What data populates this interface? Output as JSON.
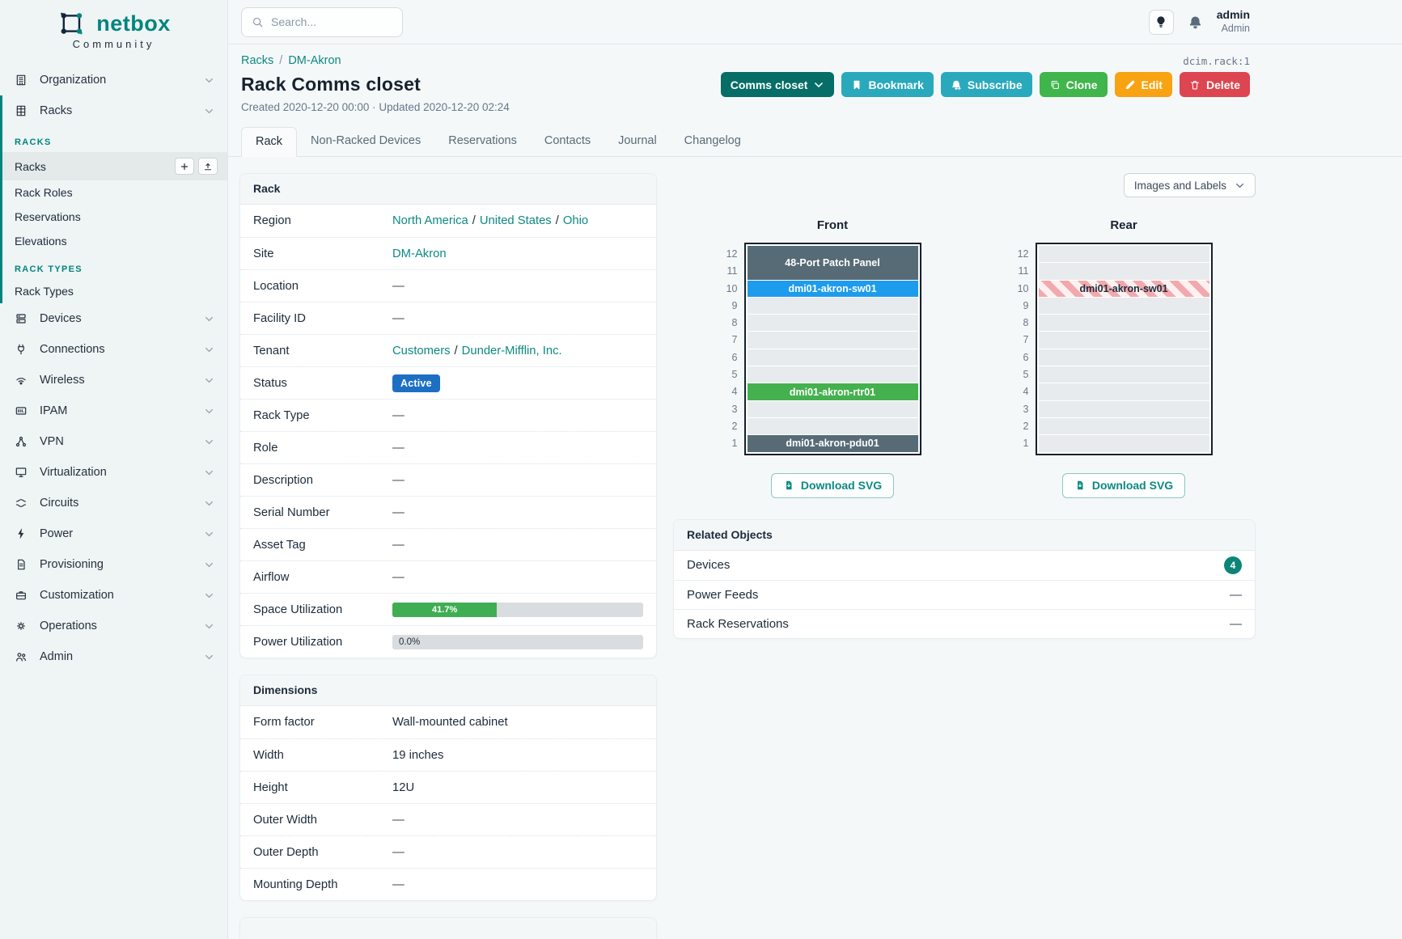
{
  "colors": {
    "teal_accent": "#00857e",
    "link_teal": "#0d8983",
    "group_button": "#066d67",
    "cyan_button": "#2aa9bc",
    "green_button": "#3fb54b",
    "orange_button": "#f8a311",
    "red_button": "#dd4550",
    "status_badge_blue": "#1d6fc4",
    "progress_green": "#3fae52",
    "devices_count_badge": "#0b8577"
  },
  "sidebar": {
    "logo": "netbox",
    "logo_sub": "Community",
    "parents_top": [
      {
        "label": "Organization",
        "icon": "organization-icon"
      },
      {
        "label": "Racks",
        "icon": "racks-icon",
        "expanded": true
      }
    ],
    "racks_sections": [
      {
        "title": "RACKS",
        "items": [
          {
            "label": "Racks",
            "active": true,
            "actions": [
              "plus-icon",
              "upload-icon"
            ]
          },
          {
            "label": "Rack Roles"
          },
          {
            "label": "Reservations"
          },
          {
            "label": "Elevations"
          }
        ]
      },
      {
        "title": "RACK TYPES",
        "items": [
          {
            "label": "Rack Types"
          }
        ]
      }
    ],
    "parents_bottom": [
      {
        "label": "Devices",
        "icon": "devices-icon"
      },
      {
        "label": "Connections",
        "icon": "connections-icon"
      },
      {
        "label": "Wireless",
        "icon": "wireless-icon"
      },
      {
        "label": "IPAM",
        "icon": "ipam-icon"
      },
      {
        "label": "VPN",
        "icon": "vpn-icon"
      },
      {
        "label": "Virtualization",
        "icon": "virtualization-icon"
      },
      {
        "label": "Circuits",
        "icon": "circuits-icon"
      },
      {
        "label": "Power",
        "icon": "power-icon"
      },
      {
        "label": "Provisioning",
        "icon": "provisioning-icon"
      },
      {
        "label": "Customization",
        "icon": "customization-icon"
      },
      {
        "label": "Operations",
        "icon": "operations-icon"
      },
      {
        "label": "Admin",
        "icon": "admin-icon"
      }
    ]
  },
  "topbar": {
    "search_placeholder": "Search...",
    "user_name": "admin",
    "user_role": "Admin"
  },
  "page": {
    "breadcrumb": [
      "Racks",
      "DM-Akron"
    ],
    "object_id": "dcim.rack:1",
    "title": "Rack Comms closet",
    "meta": "Created 2020-12-20 00:00 · Updated 2020-12-20 02:24",
    "actions": {
      "group": "Comms closet",
      "bookmark": "Bookmark",
      "subscribe": "Subscribe",
      "clone": "Clone",
      "edit": "Edit",
      "delete": "Delete"
    },
    "tabs": [
      {
        "label": "Rack",
        "active": true
      },
      {
        "label": "Non-Racked Devices"
      },
      {
        "label": "Reservations"
      },
      {
        "label": "Contacts"
      },
      {
        "label": "Journal"
      },
      {
        "label": "Changelog"
      }
    ]
  },
  "rack_panel": {
    "title": "Rack",
    "rows": [
      {
        "label": "Region",
        "type": "links",
        "value": [
          "North America",
          "United States",
          "Ohio"
        ]
      },
      {
        "label": "Site",
        "type": "link",
        "value": "DM-Akron"
      },
      {
        "label": "Location",
        "type": "empty",
        "value": "—"
      },
      {
        "label": "Facility ID",
        "type": "empty",
        "value": "—"
      },
      {
        "label": "Tenant",
        "type": "links",
        "value": [
          "Customers",
          "Dunder-Mifflin, Inc."
        ]
      },
      {
        "label": "Status",
        "type": "badge",
        "value": "Active"
      },
      {
        "label": "Rack Type",
        "type": "empty",
        "value": "—"
      },
      {
        "label": "Role",
        "type": "empty",
        "value": "—"
      },
      {
        "label": "Description",
        "type": "empty",
        "value": "—"
      },
      {
        "label": "Serial Number",
        "type": "empty",
        "value": "—"
      },
      {
        "label": "Asset Tag",
        "type": "empty",
        "value": "—"
      },
      {
        "label": "Airflow",
        "type": "empty",
        "value": "—"
      },
      {
        "label": "Space Utilization",
        "type": "progress",
        "percent": 41.7,
        "text": "41.7%"
      },
      {
        "label": "Power Utilization",
        "type": "progress-zero",
        "percent": 0,
        "text": "0.0%"
      }
    ]
  },
  "dimensions_panel": {
    "title": "Dimensions",
    "rows": [
      {
        "label": "Form factor",
        "value": "Wall-mounted cabinet"
      },
      {
        "label": "Width",
        "value": "19 inches"
      },
      {
        "label": "Height",
        "value": "12U"
      },
      {
        "label": "Outer Width",
        "value": "—"
      },
      {
        "label": "Outer Depth",
        "value": "—"
      },
      {
        "label": "Mounting Depth",
        "value": "—"
      }
    ]
  },
  "elevations": {
    "view_selector": "Images and Labels",
    "download_label": "Download SVG",
    "unit_count": 12,
    "front": {
      "title": "Front",
      "devices": [
        {
          "name": "48-Port Patch Panel",
          "top_unit": 12,
          "height_u": 2,
          "color": "#566b76",
          "text_color": "#ffffff"
        },
        {
          "name": "dmi01-akron-sw01",
          "top_unit": 10,
          "height_u": 1,
          "color": "#1d9ced",
          "text_color": "#ffffff"
        },
        {
          "name": "dmi01-akron-rtr01",
          "top_unit": 4,
          "height_u": 1,
          "color": "#44b14e",
          "text_color": "#ffffff"
        },
        {
          "name": "dmi01-akron-pdu01",
          "top_unit": 1,
          "height_u": 1,
          "color": "#566b76",
          "text_color": "#ffffff"
        }
      ]
    },
    "rear": {
      "title": "Rear",
      "devices": [
        {
          "name": "dmi01-akron-sw01",
          "top_unit": 10,
          "height_u": 1,
          "striped": true,
          "text_color": "#1c2b39"
        }
      ]
    }
  },
  "related_objects": {
    "title": "Related Objects",
    "rows": [
      {
        "label": "Devices",
        "count": "4"
      },
      {
        "label": "Power Feeds",
        "count": "—"
      },
      {
        "label": "Rack Reservations",
        "count": "—"
      }
    ]
  }
}
